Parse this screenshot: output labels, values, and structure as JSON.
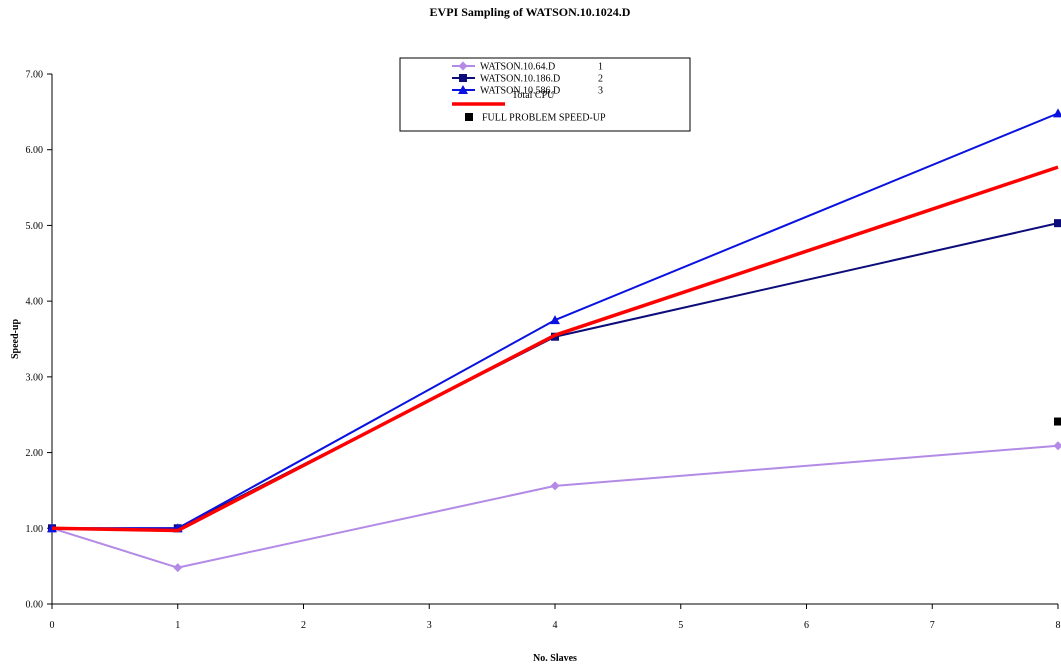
{
  "chart_data": {
    "type": "line",
    "title": "EVPI Sampling of WATSON.10.1024.D",
    "xlabel": "No. Slaves",
    "ylabel": "Speed-up",
    "xlim": [
      0,
      8
    ],
    "ylim": [
      0,
      7
    ],
    "x_ticks": [
      "0",
      "1",
      "2",
      "3",
      "4",
      "5",
      "6",
      "7",
      "8"
    ],
    "y_ticks": [
      "0.00",
      "1.00",
      "2.00",
      "3.00",
      "4.00",
      "5.00",
      "6.00",
      "7.00"
    ],
    "grid": false,
    "legend_position": "top-center",
    "series": [
      {
        "name": "WATSON.10.64.D",
        "legend_suffix": "1",
        "color": "#b38ae6",
        "marker": "diamond",
        "x": [
          0,
          1,
          4,
          8
        ],
        "y": [
          1.0,
          0.48,
          1.56,
          2.09
        ]
      },
      {
        "name": "WATSON.10.186.D",
        "legend_suffix": "2",
        "color": "#0c0c7a",
        "marker": "square",
        "x": [
          0,
          1,
          4,
          8
        ],
        "y": [
          1.0,
          1.0,
          3.53,
          5.03
        ]
      },
      {
        "name": "WATSON.10.586.D",
        "legend_suffix": "3",
        "color": "#0a12e0",
        "marker": "triangle",
        "x": [
          0,
          1,
          4,
          8
        ],
        "y": [
          1.0,
          1.0,
          3.75,
          6.48
        ]
      },
      {
        "name": "Total CPU",
        "legend_suffix": "",
        "color": "#ff0000",
        "marker": "none",
        "x": [
          0,
          1,
          4,
          8
        ],
        "y": [
          1.0,
          0.97,
          3.55,
          5.77
        ]
      },
      {
        "name": "FULL PROBLEM SPEED-UP",
        "legend_suffix": "",
        "color": "#000000",
        "marker": "square",
        "points_only": true,
        "x": [
          8
        ],
        "y": [
          2.41
        ]
      }
    ]
  }
}
